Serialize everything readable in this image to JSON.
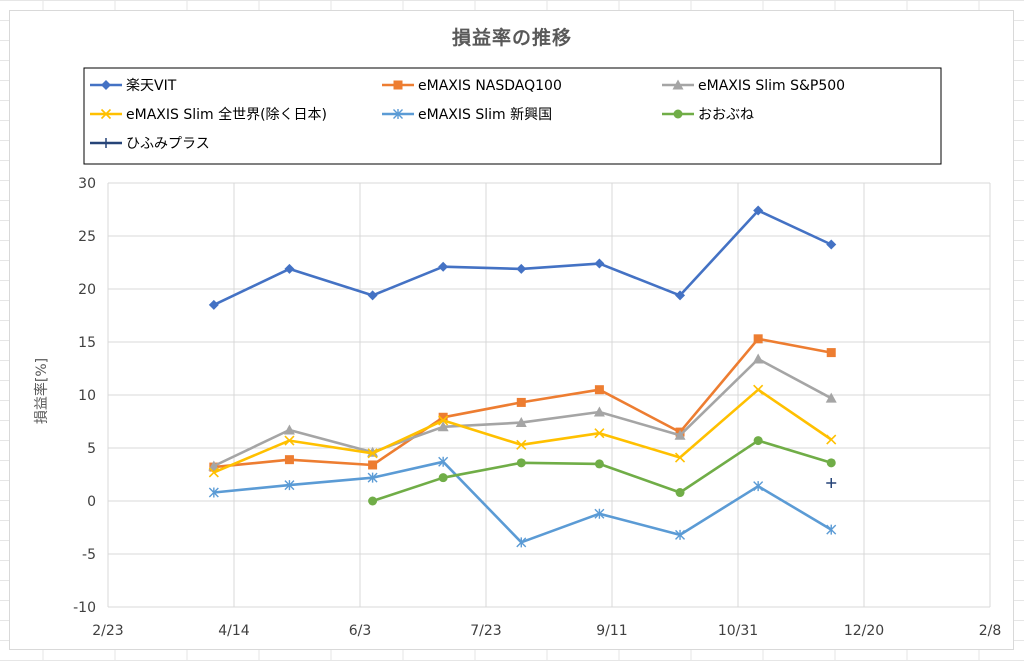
{
  "chart_data": {
    "type": "line",
    "title": "損益率の推移",
    "xlabel": "",
    "ylabel": "損益率[%]",
    "ylim": [
      -10,
      30
    ],
    "yticks": [
      -10,
      -5,
      0,
      5,
      10,
      15,
      20,
      25,
      30
    ],
    "xlim": [
      "2/23",
      "2/8"
    ],
    "xticks": [
      "2/23",
      "4/14",
      "6/3",
      "7/23",
      "9/11",
      "10/31",
      "12/20",
      "2/8"
    ],
    "x": [
      "4/6",
      "5/6",
      "6/8",
      "7/6",
      "8/6",
      "9/6",
      "10/8",
      "11/8",
      "12/7"
    ],
    "grid": true,
    "legend_position": "top",
    "series": [
      {
        "name": "楽天VIT",
        "color": "#4472C4",
        "marker": "diamond",
        "values": [
          18.5,
          21.9,
          19.4,
          22.1,
          21.9,
          22.4,
          19.4,
          27.4,
          24.2
        ]
      },
      {
        "name": "eMAXIS NASDAQ100",
        "color": "#ED7D31",
        "marker": "square",
        "values": [
          3.2,
          3.9,
          3.4,
          7.9,
          9.3,
          10.5,
          6.5,
          15.3,
          14.0
        ]
      },
      {
        "name": "eMAXIS Slim S&P500",
        "color": "#A5A5A5",
        "marker": "triangle",
        "values": [
          3.3,
          6.7,
          4.6,
          7.0,
          7.4,
          8.4,
          6.2,
          13.4,
          9.7
        ]
      },
      {
        "name": "eMAXIS Slim 全世界(除く日本)",
        "color": "#FFC000",
        "marker": "x",
        "values": [
          2.7,
          5.7,
          4.5,
          7.6,
          5.3,
          6.4,
          4.1,
          10.5,
          5.8
        ]
      },
      {
        "name": "eMAXIS Slim 新興国",
        "color": "#5B9BD5",
        "marker": "star",
        "values": [
          0.8,
          1.5,
          2.2,
          3.7,
          -3.9,
          -1.2,
          -3.2,
          1.4,
          -2.7
        ]
      },
      {
        "name": "おおぶね",
        "color": "#70AD47",
        "marker": "circle",
        "values": [
          null,
          null,
          0.0,
          2.2,
          3.6,
          3.5,
          0.8,
          5.7,
          3.6
        ]
      },
      {
        "name": "ひふみプラス",
        "color": "#264478",
        "marker": "plus",
        "values": [
          null,
          null,
          null,
          null,
          null,
          null,
          null,
          null,
          1.7
        ]
      }
    ]
  }
}
